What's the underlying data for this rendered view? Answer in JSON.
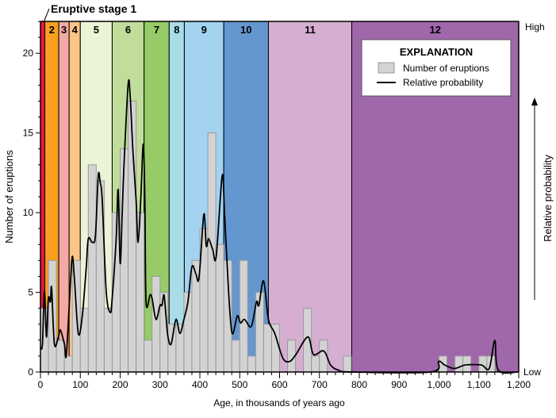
{
  "chart_data": {
    "type": "bar",
    "xlabel": "Age, in thousands of years ago",
    "ylabel": "Number of eruptions",
    "right_axis_label": "Relative probability",
    "right_axis_high": "High",
    "right_axis_low": "Low",
    "xlim": [
      0,
      1200
    ],
    "ylim": [
      0,
      22
    ],
    "xticks": [
      0,
      100,
      200,
      300,
      400,
      500,
      600,
      700,
      800,
      900,
      1000,
      1100,
      1200
    ],
    "xtick_labels": [
      "0",
      "100",
      "200",
      "300",
      "400",
      "500",
      "600",
      "700",
      "800",
      "900",
      "1,000",
      "1,100",
      "1,200"
    ],
    "yticks": [
      0,
      5,
      10,
      15,
      20
    ],
    "ytick_labels": [
      "0",
      "5",
      "10",
      "15",
      "20"
    ],
    "bin_width": 20,
    "stage_label_prefix": "Eruptive stage 1",
    "stages": [
      {
        "label": "1",
        "start": 0,
        "end": 11,
        "color": "#e8173a"
      },
      {
        "label": "2",
        "start": 11,
        "end": 46,
        "color": "#f7a11f"
      },
      {
        "label": "3",
        "start": 46,
        "end": 72,
        "color": "#f4a9a4"
      },
      {
        "label": "4",
        "start": 72,
        "end": 100,
        "color": "#fbc585"
      },
      {
        "label": "5",
        "start": 100,
        "end": 180,
        "color": "#ebf4d7"
      },
      {
        "label": "6",
        "start": 180,
        "end": 260,
        "color": "#c0dd9b"
      },
      {
        "label": "7",
        "start": 260,
        "end": 323,
        "color": "#96cb67"
      },
      {
        "label": "8",
        "start": 323,
        "end": 361,
        "color": "#a8dde8"
      },
      {
        "label": "9",
        "start": 361,
        "end": 460,
        "color": "#a3d3f1"
      },
      {
        "label": "10",
        "start": 460,
        "end": 572,
        "color": "#6497cf"
      },
      {
        "label": "11",
        "start": 572,
        "end": 781,
        "color": "#d5aed1"
      },
      {
        "label": "12",
        "start": 781,
        "end": 1200,
        "color": "#a067ab"
      }
    ],
    "series": [
      {
        "name": "Number of eruptions",
        "type": "bar",
        "color": "#d3d3d3",
        "bins": [
          0,
          20,
          40,
          60,
          80,
          100,
          120,
          140,
          160,
          180,
          200,
          220,
          240,
          260,
          280,
          300,
          320,
          340,
          360,
          380,
          400,
          420,
          440,
          460,
          480,
          500,
          520,
          540,
          560,
          580,
          600,
          620,
          640,
          660,
          680,
          700,
          720,
          740,
          760,
          1000,
          1040,
          1060,
          1100,
          1120
        ],
        "values": [
          4,
          7,
          2,
          1,
          7,
          4,
          13,
          12,
          4,
          10,
          14,
          17,
          10,
          2,
          6,
          5,
          3,
          3,
          5,
          7,
          9,
          15,
          8,
          7,
          2,
          7,
          1,
          5,
          3,
          3,
          0,
          2,
          0,
          4,
          1,
          2,
          0,
          0,
          1,
          1,
          1,
          1,
          1,
          1
        ]
      },
      {
        "name": "Relative probability",
        "type": "line",
        "color": "#000000",
        "x": [
          0,
          5,
          10,
          15,
          20,
          25,
          28,
          35,
          45,
          50,
          60,
          65,
          75,
          80,
          85,
          95,
          105,
          115,
          120,
          130,
          138,
          145,
          150,
          155,
          165,
          175,
          180,
          190,
          195,
          200,
          205,
          210,
          220,
          225,
          232,
          240,
          245,
          252,
          258,
          262,
          265,
          275,
          280,
          290,
          300,
          305,
          310,
          315,
          320,
          328,
          340,
          350,
          360,
          370,
          380,
          390,
          398,
          410,
          416,
          422,
          432,
          441,
          456,
          462,
          472,
          481,
          494,
          502,
          512,
          529,
          542,
          548,
          560,
          572,
          588,
          608,
          625,
          641,
          671,
          685,
          711,
          728,
          748,
          781,
          979,
          999,
          1014,
          1039,
          1066,
          1106,
          1126,
          1140,
          1149,
          1198
        ],
        "y": [
          0.07,
          0.08,
          0.23,
          0.1,
          0.21,
          0.2,
          0.24,
          0.08,
          0.1,
          0.12,
          0.08,
          0.05,
          0.25,
          0.33,
          0.27,
          0.11,
          0.16,
          0.3,
          0.38,
          0.37,
          0.39,
          0.56,
          0.54,
          0.49,
          0.23,
          0.17,
          0.21,
          0.38,
          0.52,
          0.31,
          0.45,
          0.6,
          0.82,
          0.79,
          0.63,
          0.49,
          0.37,
          0.5,
          0.65,
          0.49,
          0.2,
          0.22,
          0.21,
          0.15,
          0.19,
          0.19,
          0.22,
          0.16,
          0.1,
          0.08,
          0.15,
          0.11,
          0.15,
          0.2,
          0.3,
          0.28,
          0.27,
          0.45,
          0.36,
          0.38,
          0.35,
          0.33,
          0.56,
          0.45,
          0.23,
          0.11,
          0.16,
          0.14,
          0.15,
          0.13,
          0.2,
          0.19,
          0.26,
          0.15,
          0.11,
          0.04,
          0.03,
          0.05,
          0.1,
          0.05,
          0.06,
          0.02,
          0.005,
          0,
          0,
          0.03,
          0.02,
          0.01,
          0.02,
          0.02,
          0.01,
          0.09,
          0.005,
          0
        ]
      }
    ],
    "legend": {
      "title": "EXPLANATION",
      "placement": "top-right",
      "items": [
        "Number of eruptions",
        "Relative probability"
      ]
    },
    "grid": false
  }
}
